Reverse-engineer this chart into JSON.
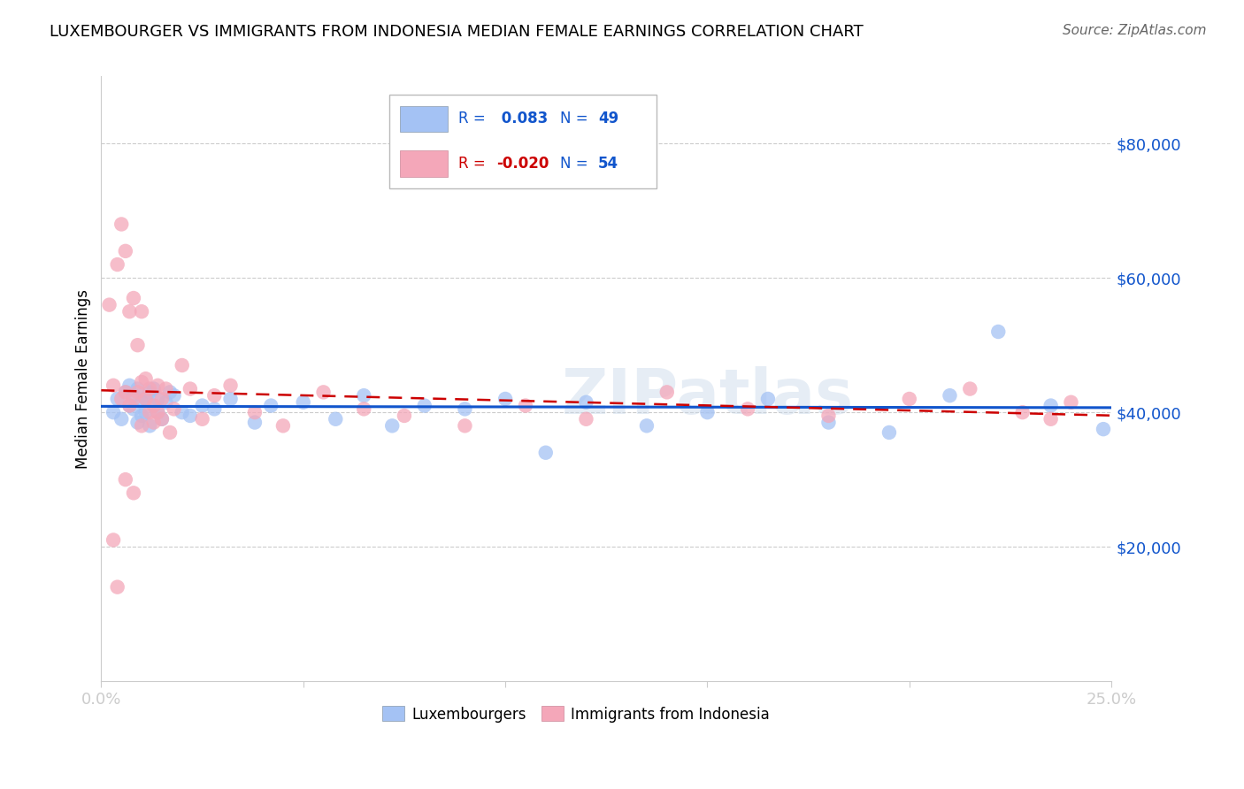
{
  "title": "LUXEMBOURGER VS IMMIGRANTS FROM INDONESIA MEDIAN FEMALE EARNINGS CORRELATION CHART",
  "source": "Source: ZipAtlas.com",
  "ylabel": "Median Female Earnings",
  "watermark": "ZIPatlas",
  "blue_R": 0.083,
  "blue_N": 49,
  "pink_R": -0.02,
  "pink_N": 54,
  "xlim": [
    0.0,
    0.25
  ],
  "ylim": [
    0,
    90000
  ],
  "blue_color": "#a4c2f4",
  "pink_color": "#f4a7b9",
  "blue_line_color": "#1155cc",
  "pink_line_color": "#cc0000",
  "legend_label_blue": "Luxembourgers",
  "legend_label_pink": "Immigrants from Indonesia",
  "blue_x": [
    0.003,
    0.004,
    0.005,
    0.006,
    0.007,
    0.007,
    0.008,
    0.008,
    0.009,
    0.009,
    0.01,
    0.01,
    0.011,
    0.011,
    0.012,
    0.012,
    0.013,
    0.013,
    0.014,
    0.014,
    0.015,
    0.016,
    0.017,
    0.018,
    0.02,
    0.022,
    0.025,
    0.028,
    0.032,
    0.038,
    0.042,
    0.05,
    0.058,
    0.065,
    0.072,
    0.08,
    0.09,
    0.1,
    0.11,
    0.12,
    0.135,
    0.15,
    0.165,
    0.18,
    0.195,
    0.21,
    0.222,
    0.235,
    0.248
  ],
  "blue_y": [
    40000,
    42000,
    39000,
    43000,
    41000,
    44000,
    40500,
    42500,
    38500,
    43500,
    41500,
    39500,
    42000,
    40000,
    43000,
    38000,
    41000,
    43500,
    40000,
    42000,
    39000,
    41500,
    43000,
    42500,
    40000,
    39500,
    41000,
    40500,
    42000,
    38500,
    41000,
    41500,
    39000,
    42500,
    38000,
    41000,
    40500,
    42000,
    34000,
    41500,
    38000,
    40000,
    42000,
    38500,
    37000,
    42500,
    52000,
    41000,
    37500
  ],
  "pink_x": [
    0.002,
    0.003,
    0.004,
    0.005,
    0.005,
    0.006,
    0.006,
    0.007,
    0.007,
    0.008,
    0.008,
    0.009,
    0.009,
    0.01,
    0.01,
    0.01,
    0.011,
    0.011,
    0.012,
    0.012,
    0.013,
    0.013,
    0.014,
    0.014,
    0.015,
    0.015,
    0.016,
    0.017,
    0.018,
    0.02,
    0.022,
    0.025,
    0.028,
    0.032,
    0.038,
    0.045,
    0.055,
    0.065,
    0.075,
    0.09,
    0.105,
    0.12,
    0.14,
    0.16,
    0.18,
    0.2,
    0.215,
    0.228,
    0.235,
    0.24,
    0.003,
    0.004,
    0.006,
    0.008
  ],
  "pink_y": [
    56000,
    44000,
    62000,
    68000,
    42000,
    64000,
    43000,
    55000,
    41000,
    57000,
    42000,
    50000,
    43000,
    44500,
    38000,
    55000,
    45000,
    42000,
    40000,
    43500,
    41000,
    38500,
    44000,
    40000,
    39000,
    42000,
    43500,
    37000,
    40500,
    47000,
    43500,
    39000,
    42500,
    44000,
    40000,
    38000,
    43000,
    40500,
    39500,
    38000,
    41000,
    39000,
    43000,
    40500,
    39500,
    42000,
    43500,
    40000,
    39000,
    41500,
    21000,
    14000,
    30000,
    28000
  ]
}
